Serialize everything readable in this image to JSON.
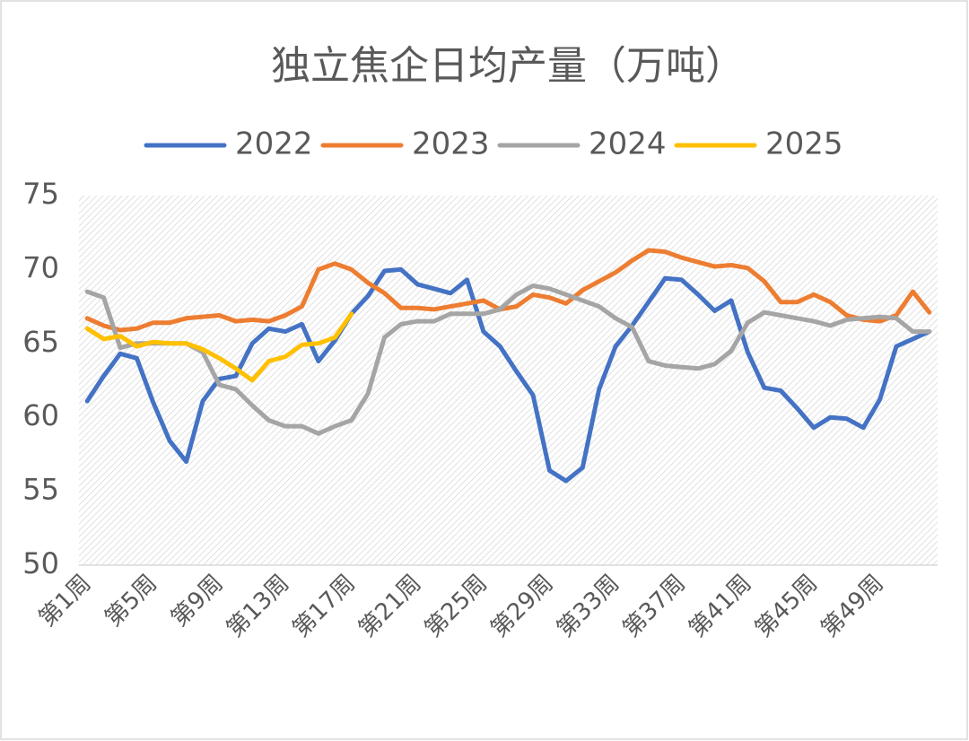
{
  "chart_data": {
    "type": "line",
    "title": "独立焦企日均产量（万吨）",
    "categories": [
      "第1周",
      null,
      null,
      null,
      "第5周",
      null,
      null,
      null,
      "第9周",
      null,
      null,
      null,
      "第13周",
      null,
      null,
      null,
      "第17周",
      null,
      null,
      null,
      "第21周",
      null,
      null,
      null,
      "第25周",
      null,
      null,
      null,
      "第29周",
      null,
      null,
      null,
      "第33周",
      null,
      null,
      null,
      "第37周",
      null,
      null,
      null,
      "第41周",
      null,
      null,
      null,
      "第45周",
      null,
      null,
      null,
      "第49周",
      null,
      null,
      null
    ],
    "series": [
      {
        "name": "2022",
        "color": "#4472c4",
        "values": [
          61.1,
          62.8,
          64.3,
          64.0,
          61.0,
          58.4,
          57.0,
          61.1,
          62.6,
          62.8,
          65.0,
          66.0,
          65.8,
          66.3,
          63.8,
          65.2,
          67.0,
          68.2,
          69.9,
          70.0,
          69.0,
          68.7,
          68.4,
          69.3,
          65.8,
          64.8,
          63.1,
          61.5,
          56.4,
          55.7,
          56.6,
          61.9,
          64.8,
          66.2,
          67.8,
          69.4,
          69.3,
          68.3,
          67.2,
          67.9,
          64.4,
          62.0,
          61.8,
          60.6,
          59.3,
          60.0,
          59.9,
          59.3,
          61.2,
          64.8,
          65.3,
          65.8
        ]
      },
      {
        "name": "2023",
        "color": "#ed7d31",
        "values": [
          66.7,
          66.2,
          65.9,
          66.0,
          66.4,
          66.4,
          66.7,
          66.8,
          66.9,
          66.5,
          66.6,
          66.5,
          66.9,
          67.5,
          70.0,
          70.4,
          70.0,
          69.1,
          68.4,
          67.4,
          67.4,
          67.3,
          67.5,
          67.7,
          67.9,
          67.3,
          67.5,
          68.3,
          68.1,
          67.7,
          68.6,
          69.2,
          69.8,
          70.6,
          71.3,
          71.2,
          70.8,
          70.5,
          70.2,
          70.3,
          70.1,
          69.2,
          67.8,
          67.8,
          68.3,
          67.8,
          66.9,
          66.6,
          66.5,
          66.9,
          68.5,
          67.1
        ]
      },
      {
        "name": "2024",
        "color": "#a5a5a5",
        "values": [
          68.5,
          68.1,
          64.7,
          65.0,
          65.0,
          65.0,
          65.0,
          64.4,
          62.2,
          61.9,
          60.8,
          59.8,
          59.4,
          59.4,
          58.9,
          59.4,
          59.8,
          61.6,
          65.4,
          66.3,
          66.5,
          66.5,
          67.0,
          67.0,
          67.0,
          67.3,
          68.3,
          68.9,
          68.7,
          68.3,
          67.9,
          67.5,
          66.7,
          66.1,
          63.8,
          63.5,
          63.4,
          63.3,
          63.6,
          64.5,
          66.4,
          67.1,
          66.9,
          66.7,
          66.5,
          66.2,
          66.6,
          66.7,
          66.8,
          66.7,
          65.8,
          65.8
        ]
      },
      {
        "name": "2025",
        "color": "#ffc000",
        "values": [
          66.0,
          65.3,
          65.5,
          64.8,
          65.1,
          65.0,
          65.0,
          64.6,
          64.0,
          63.3,
          62.5,
          63.8,
          64.1,
          64.9,
          65.0,
          65.4,
          67.0,
          null,
          null,
          null,
          null,
          null,
          null,
          null,
          null,
          null,
          null,
          null,
          null,
          null,
          null,
          null,
          null,
          null,
          null,
          null,
          null,
          null,
          null,
          null,
          null,
          null,
          null,
          null,
          null,
          null,
          null,
          null,
          null,
          null,
          null,
          null
        ]
      }
    ],
    "ylim": [
      50,
      75
    ],
    "yticks": [
      50,
      55,
      60,
      65,
      70,
      75
    ],
    "grid": false,
    "legend": "top"
  }
}
